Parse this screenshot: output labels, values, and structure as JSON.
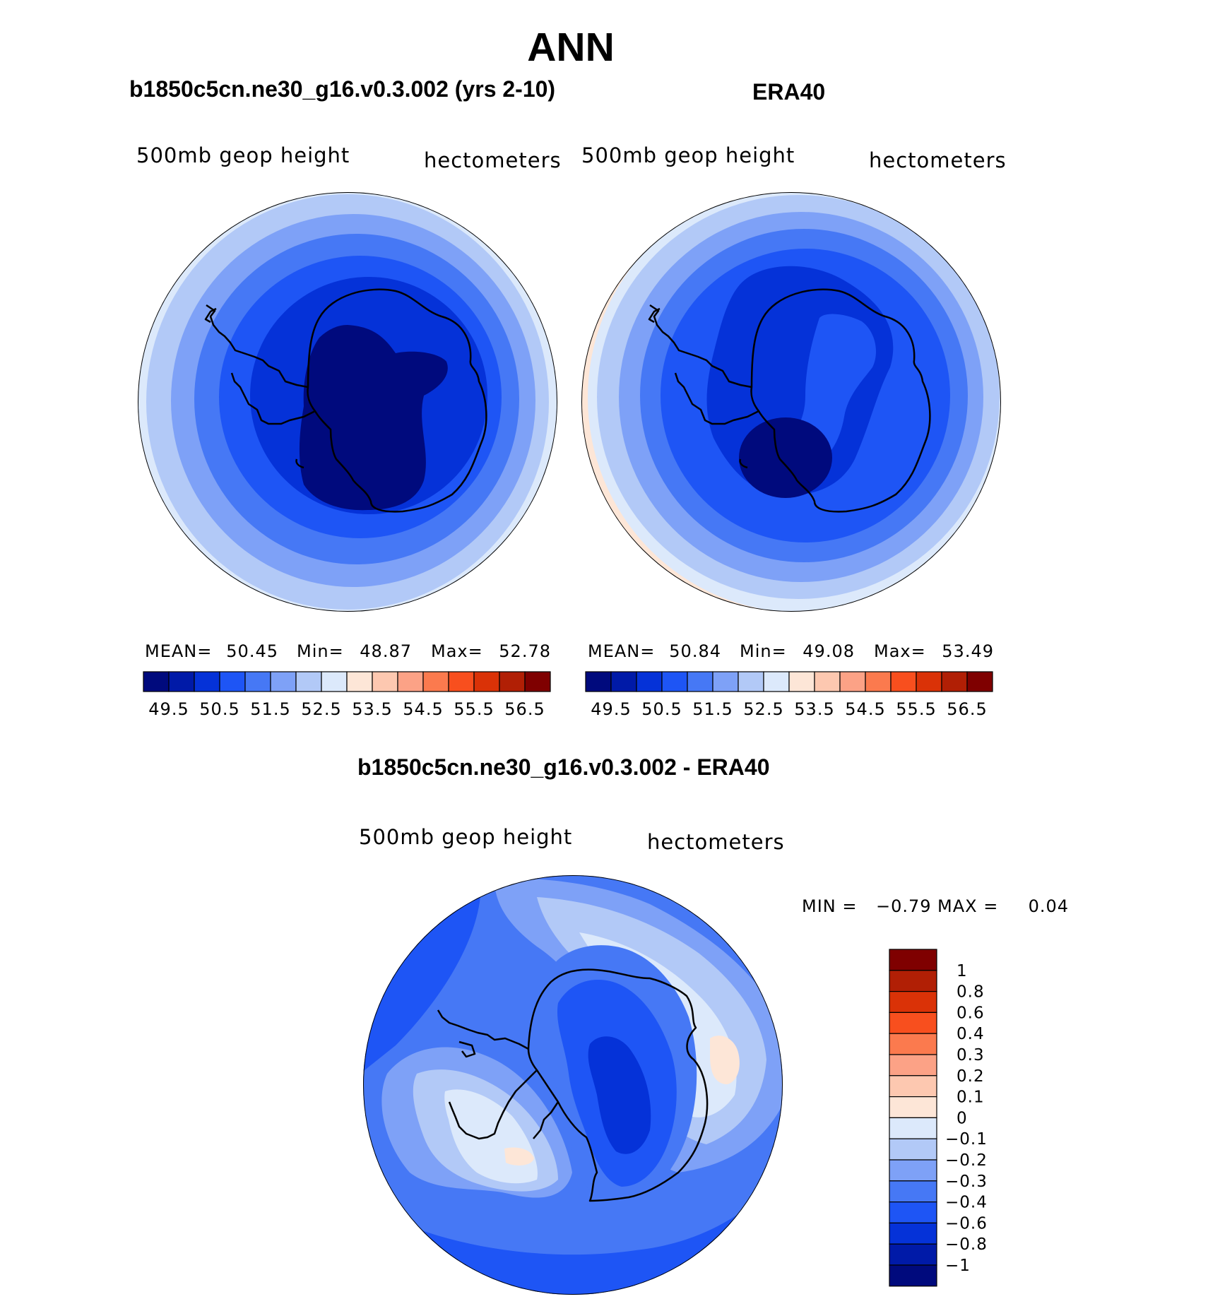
{
  "figure_title": "ANN",
  "panels": {
    "model": {
      "title": "b1850c5cn.ne30_g16.v0.3.002 (yrs 2-10)",
      "variable": "500mb geop height",
      "units": "hectometers",
      "stats": {
        "mean_label": "MEAN=",
        "mean": "50.45",
        "min_label": "Min=",
        "min": "48.87",
        "max_label": "Max=",
        "max": "52.78"
      }
    },
    "obs": {
      "title": "ERA40",
      "variable": "500mb geop height",
      "units": "hectometers",
      "stats": {
        "mean_label": "MEAN=",
        "mean": "50.84",
        "min_label": "Min=",
        "min": "49.08",
        "max_label": "Max=",
        "max": "53.49"
      }
    },
    "diff": {
      "title": "b1850c5cn.ne30_g16.v0.3.002 - ERA40",
      "variable": "500mb geop height",
      "units": "hectometers",
      "minmax": {
        "min_label": "MIN =",
        "min": "−0.79",
        "max_label": "MAX =",
        "max": "0.04"
      }
    }
  },
  "chart_data": [
    {
      "type": "heatmap",
      "title": "b1850c5cn.ne30_g16.v0.3.002 (yrs 2-10)",
      "projection": "south polar stereographic",
      "variable": "500mb geop height",
      "units": "hectometers",
      "mean": 50.45,
      "min": 48.87,
      "max": 52.78,
      "contour_levels": [
        49.5,
        50,
        50.5,
        51,
        51.5,
        52,
        52.5,
        53,
        53.5,
        54,
        54.5,
        55,
        55.5,
        56,
        56.5
      ],
      "colorbar_tick_labels": [
        "49.5",
        "50.5",
        "51.5",
        "52.5",
        "53.5",
        "54.5",
        "55.5",
        "56.5"
      ]
    },
    {
      "type": "heatmap",
      "title": "ERA40",
      "projection": "south polar stereographic",
      "variable": "500mb geop height",
      "units": "hectometers",
      "mean": 50.84,
      "min": 49.08,
      "max": 53.49,
      "contour_levels": [
        49.5,
        50,
        50.5,
        51,
        51.5,
        52,
        52.5,
        53,
        53.5,
        54,
        54.5,
        55,
        55.5,
        56,
        56.5
      ],
      "colorbar_tick_labels": [
        "49.5",
        "50.5",
        "51.5",
        "52.5",
        "53.5",
        "54.5",
        "55.5",
        "56.5"
      ]
    },
    {
      "type": "heatmap",
      "title": "b1850c5cn.ne30_g16.v0.3.002 - ERA40",
      "projection": "south polar stereographic",
      "variable": "500mb geop height",
      "units": "hectometers",
      "min": -0.79,
      "max": 0.04,
      "contour_levels": [
        -1,
        -0.8,
        -0.6,
        -0.4,
        -0.3,
        -0.2,
        -0.1,
        0,
        0.1,
        0.2,
        0.3,
        0.4,
        0.6,
        0.8,
        1
      ],
      "colorbar_tick_labels": [
        "1",
        "0.8",
        "0.6",
        "0.4",
        "0.3",
        "0.2",
        "0.1",
        "0",
        "−0.1",
        "−0.2",
        "−0.3",
        "−0.4",
        "−0.6",
        "−0.8",
        "−1"
      ]
    }
  ],
  "colors": {
    "palette": [
      "#000a7d",
      "#001aa8",
      "#0532d8",
      "#1e55f5",
      "#4678f5",
      "#7ea1f7",
      "#b2c9f7",
      "#dce9fb",
      "#fde6d7",
      "#fdc8b0",
      "#fca286",
      "#fb7a4e",
      "#f84f1e",
      "#da3207",
      "#b11f05",
      "#7f0000"
    ],
    "map_outline": "#000000"
  }
}
